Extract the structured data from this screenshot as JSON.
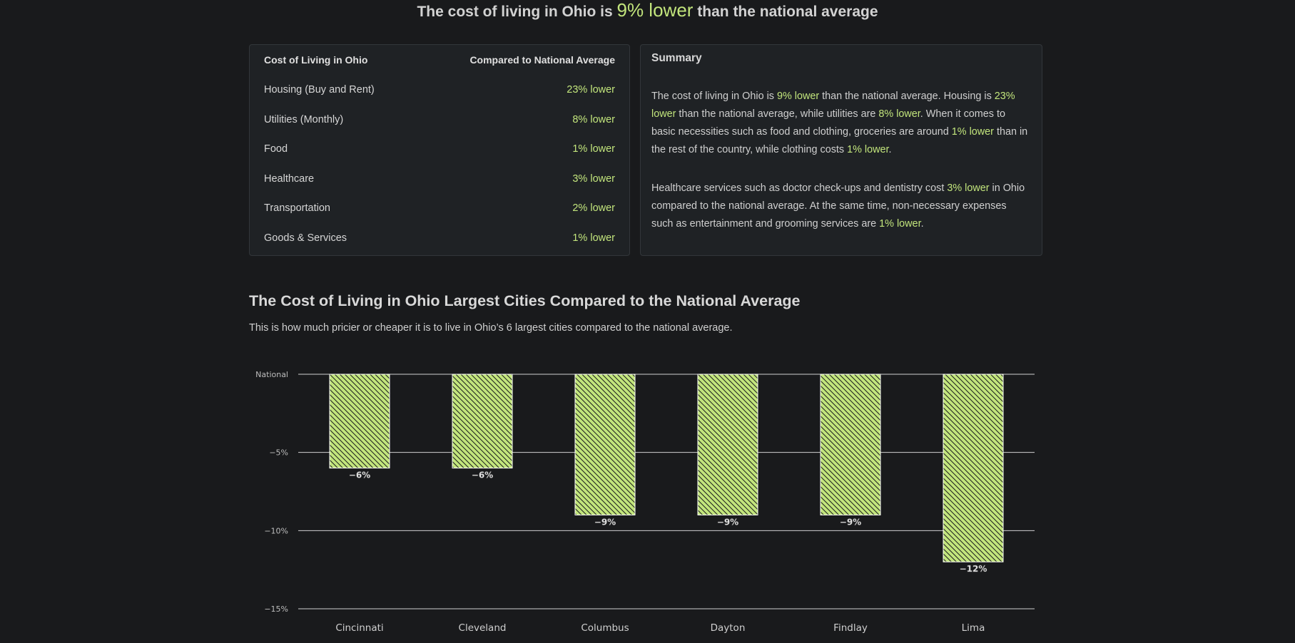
{
  "headline": {
    "prefix": "The cost of living in Ohio is",
    "highlight": "9% lower",
    "suffix": "than the national average"
  },
  "table": {
    "header_left": "Cost of Living in Ohio",
    "header_right": "Compared to National Average",
    "rows": [
      {
        "label": "Housing (Buy and Rent)",
        "value": "23% lower"
      },
      {
        "label": "Utilities (Monthly)",
        "value": "8% lower"
      },
      {
        "label": "Food",
        "value": "1% lower"
      },
      {
        "label": "Healthcare",
        "value": "3% lower"
      },
      {
        "label": "Transportation",
        "value": "2% lower"
      },
      {
        "label": "Goods & Services",
        "value": "1% lower"
      }
    ]
  },
  "summary": {
    "title": "Summary",
    "p1": [
      {
        "t": "The cost of living in Ohio is "
      },
      {
        "t": "9% lower",
        "hl": true
      },
      {
        "t": " than the national average. Housing is "
      },
      {
        "t": "23% lower",
        "hl": true
      },
      {
        "t": " than the national average, while utilities are "
      },
      {
        "t": "8% lower",
        "hl": true
      },
      {
        "t": ". When it comes to basic necessities such as food and clothing, groceries are around "
      },
      {
        "t": "1% lower",
        "hl": true
      },
      {
        "t": " than in the rest of the country, while clothing costs "
      },
      {
        "t": "1% lower",
        "hl": true
      },
      {
        "t": "."
      }
    ],
    "p2": [
      {
        "t": "Healthcare services such as doctor check-ups and dentistry cost "
      },
      {
        "t": "3% lower",
        "hl": true
      },
      {
        "t": " in Ohio compared to the national average. At the same time, non-necessary expenses such as entertainment and grooming services are "
      },
      {
        "t": "1% lower",
        "hl": true
      },
      {
        "t": "."
      }
    ]
  },
  "section": {
    "title": "The Cost of Living in Ohio Largest Cities Compared to the National Average",
    "subtitle": "This is how much pricier or cheaper it is to live in Ohio’s 6 largest cities compared to the national average."
  },
  "colors": {
    "accent": "#c2e57c",
    "background": "#191a1c",
    "card": "#1f2225"
  },
  "chart_data": {
    "type": "bar",
    "categories": [
      "Cincinnati",
      "Cleveland",
      "Columbus",
      "Dayton",
      "Findlay",
      "Lima"
    ],
    "values": [
      -6,
      -6,
      -9,
      -9,
      -9,
      -12
    ],
    "data_labels": [
      "−6%",
      "−6%",
      "−9%",
      "−9%",
      "−9%",
      "−12%"
    ],
    "ylim": [
      -15,
      0
    ],
    "yticks": [
      0,
      -5,
      -10,
      -15
    ],
    "ytick_labels": [
      "National",
      "−5%",
      "−10%",
      "−15%"
    ],
    "grid": true,
    "bar_fill": "hatched"
  }
}
